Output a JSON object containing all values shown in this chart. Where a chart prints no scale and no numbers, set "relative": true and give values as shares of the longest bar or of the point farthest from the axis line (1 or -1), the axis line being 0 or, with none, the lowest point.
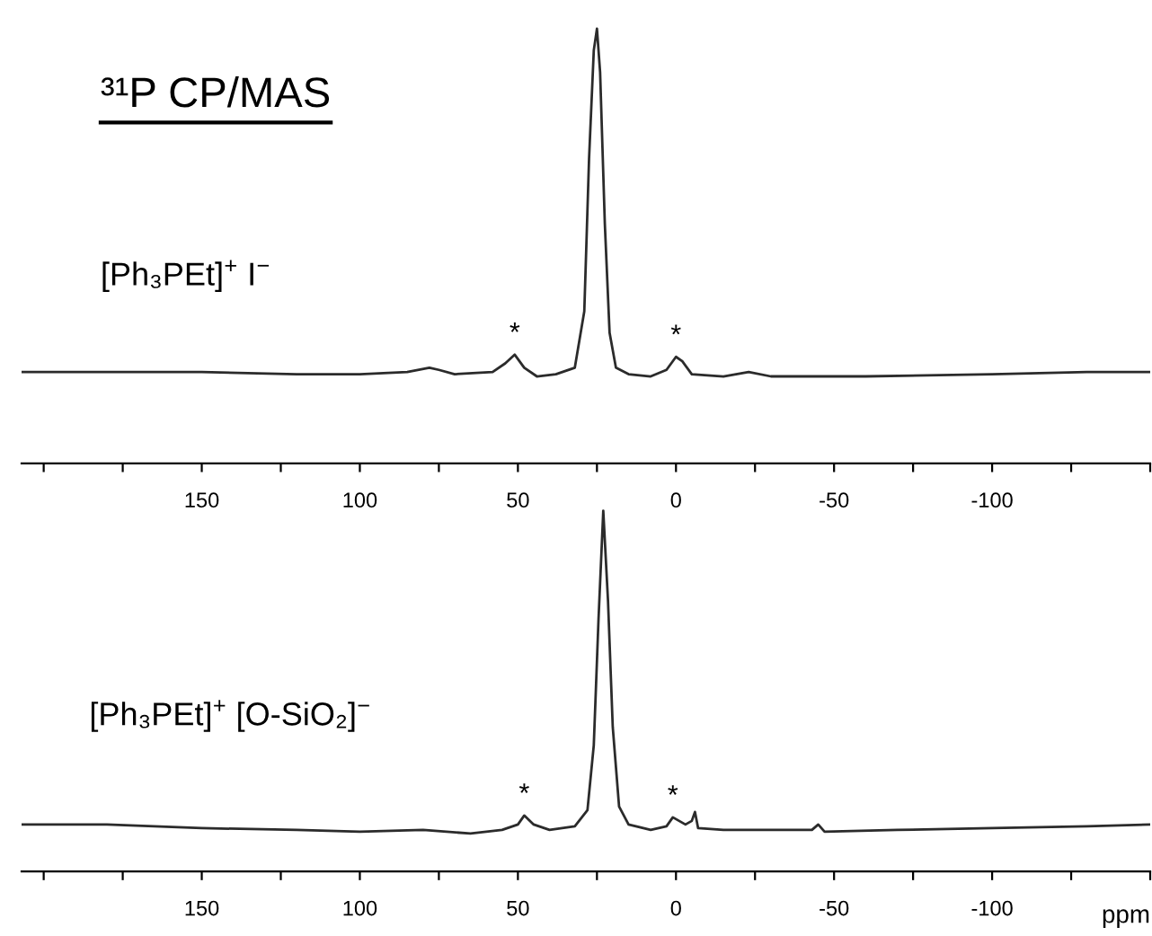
{
  "chart_data": [
    {
      "type": "line",
      "relative": true,
      "title": "³¹P CP/MAS",
      "annotations": [
        "[Ph₃PEt]$^{+}$ I$^{−}$",
        {
          "text": "*",
          "x": 51,
          "y": 0.25
        },
        {
          "text": "*",
          "x": 0,
          "y": 0.245
        }
      ],
      "tick_labels": "x",
      "xlim": [
        207,
        -150
      ],
      "xticks": [
        {
          "value": 200,
          "label": null
        },
        {
          "value": 175,
          "label": null
        },
        150,
        {
          "value": 125,
          "label": null
        },
        100,
        {
          "value": 75,
          "label": null
        },
        50,
        {
          "value": 25,
          "label": null
        },
        0,
        {
          "value": -25,
          "label": null
        },
        -50,
        {
          "value": -75,
          "label": null
        },
        -100,
        {
          "value": -125,
          "label": null
        },
        {
          "value": -150,
          "label": null
        }
      ],
      "series": [
        {
          "color": "#2b2b2b",
          "x": [
            207,
            180,
            150,
            120,
            100,
            85,
            78,
            75,
            70,
            58,
            54,
            51,
            48,
            44,
            38,
            32,
            29,
            27.5,
            26,
            25,
            24,
            22.5,
            21,
            19,
            15,
            8,
            3,
            0,
            -2,
            -5,
            -15,
            -23,
            -30,
            -60,
            -100,
            -130,
            -150
          ],
          "values": [
            0.21,
            0.21,
            0.21,
            0.205,
            0.205,
            0.21,
            0.22,
            0.215,
            0.205,
            0.21,
            0.23,
            0.25,
            0.22,
            0.2,
            0.205,
            0.22,
            0.35,
            0.7,
            0.95,
            1.0,
            0.9,
            0.55,
            0.3,
            0.22,
            0.205,
            0.2,
            0.215,
            0.245,
            0.235,
            0.205,
            0.2,
            0.21,
            0.2,
            0.2,
            0.205,
            0.21,
            0.21
          ]
        }
      ]
    },
    {
      "type": "line",
      "relative": true,
      "xlabel": "ppm",
      "annotations": [
        "[Ph₃PEt]$^{+}$ [O-SiO₂]$^{−}$",
        {
          "text": "*",
          "x": 48,
          "y": 0.155
        },
        {
          "text": "*",
          "x": 1,
          "y": 0.15
        }
      ],
      "xlim": [
        207,
        -150
      ],
      "tick_labels": "x",
      "xticks": [
        {
          "value": 200,
          "label": null
        },
        {
          "value": 175,
          "label": null
        },
        150,
        {
          "value": 125,
          "label": null
        },
        100,
        {
          "value": 75,
          "label": null
        },
        50,
        {
          "value": 25,
          "label": null
        },
        0,
        {
          "value": -25,
          "label": null
        },
        -50,
        {
          "value": -75,
          "label": null
        },
        -100,
        {
          "value": -125,
          "label": null
        },
        {
          "value": -150,
          "label": null
        }
      ],
      "series": [
        {
          "color": "#2b2b2b",
          "x": [
            207,
            180,
            150,
            120,
            100,
            80,
            65,
            55,
            50,
            48,
            45,
            40,
            32,
            28,
            26,
            24.5,
            23,
            21.5,
            20,
            18,
            15,
            8,
            3,
            1,
            -1,
            -3,
            -5,
            -6,
            -7,
            -15,
            -35,
            -43,
            -45,
            -47,
            -70,
            -100,
            -130,
            -150
          ],
          "values": [
            0.13,
            0.13,
            0.12,
            0.115,
            0.11,
            0.115,
            0.105,
            0.115,
            0.13,
            0.155,
            0.13,
            0.115,
            0.125,
            0.17,
            0.35,
            0.7,
            1.0,
            0.75,
            0.4,
            0.18,
            0.13,
            0.115,
            0.125,
            0.15,
            0.14,
            0.13,
            0.14,
            0.165,
            0.12,
            0.115,
            0.115,
            0.115,
            0.13,
            0.11,
            0.115,
            0.12,
            0.125,
            0.13
          ]
        }
      ]
    }
  ]
}
